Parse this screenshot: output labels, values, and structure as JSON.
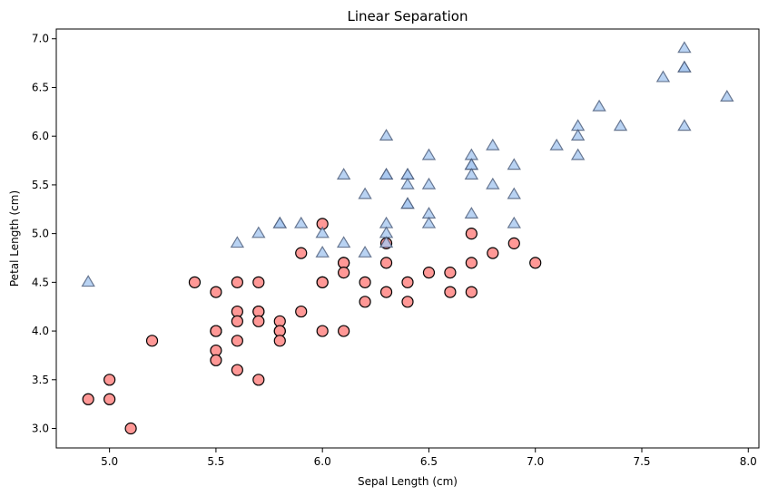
{
  "chart_data": {
    "type": "scatter",
    "title": "Linear Separation",
    "xlabel": "Sepal Length (cm)",
    "ylabel": "Petal Length (cm)",
    "xlim": [
      4.75,
      8.05
    ],
    "ylim": [
      2.8,
      7.1
    ],
    "xticks": [
      "5.0",
      "5.5",
      "6.0",
      "6.5",
      "7.0",
      "7.5",
      "8.0"
    ],
    "yticks": [
      "3.0",
      "3.5",
      "4.0",
      "4.5",
      "5.0",
      "5.5",
      "6.0",
      "6.5",
      "7.0"
    ],
    "grid": false,
    "legend": false,
    "colors": {
      "circle_fill": "#ff9896",
      "circle_edge": "#000000",
      "triangle_fill": "#a8c8f0",
      "triangle_edge": "#4a5a78"
    },
    "series": [
      {
        "marker": "circle",
        "points": [
          [
            4.9,
            3.3
          ],
          [
            5.0,
            3.5
          ],
          [
            5.0,
            3.3
          ],
          [
            5.1,
            3.0
          ],
          [
            5.2,
            3.9
          ],
          [
            5.4,
            4.5
          ],
          [
            5.5,
            4.4
          ],
          [
            5.5,
            4.0
          ],
          [
            5.5,
            4.0
          ],
          [
            5.5,
            3.8
          ],
          [
            5.5,
            3.7
          ],
          [
            5.6,
            4.5
          ],
          [
            5.6,
            4.2
          ],
          [
            5.6,
            4.1
          ],
          [
            5.6,
            3.9
          ],
          [
            5.6,
            3.6
          ],
          [
            5.7,
            4.5
          ],
          [
            5.7,
            4.2
          ],
          [
            5.7,
            4.2
          ],
          [
            5.7,
            4.1
          ],
          [
            5.7,
            3.5
          ],
          [
            5.8,
            4.1
          ],
          [
            5.8,
            4.0
          ],
          [
            5.8,
            4.0
          ],
          [
            5.8,
            3.9
          ],
          [
            5.9,
            4.8
          ],
          [
            5.9,
            4.2
          ],
          [
            6.0,
            5.1
          ],
          [
            6.0,
            4.5
          ],
          [
            6.0,
            4.5
          ],
          [
            6.0,
            4.0
          ],
          [
            6.1,
            4.7
          ],
          [
            6.1,
            4.7
          ],
          [
            6.1,
            4.6
          ],
          [
            6.1,
            4.0
          ],
          [
            6.2,
            4.5
          ],
          [
            6.2,
            4.3
          ],
          [
            6.3,
            4.9
          ],
          [
            6.3,
            4.7
          ],
          [
            6.3,
            4.4
          ],
          [
            6.4,
            4.5
          ],
          [
            6.4,
            4.3
          ],
          [
            6.5,
            4.6
          ],
          [
            6.6,
            4.6
          ],
          [
            6.6,
            4.4
          ],
          [
            6.7,
            5.0
          ],
          [
            6.7,
            4.7
          ],
          [
            6.7,
            4.4
          ],
          [
            6.8,
            4.8
          ],
          [
            6.9,
            4.9
          ],
          [
            7.0,
            4.7
          ]
        ]
      },
      {
        "marker": "triangle",
        "points": [
          [
            4.9,
            4.5
          ],
          [
            5.6,
            4.9
          ],
          [
            5.7,
            5.0
          ],
          [
            5.8,
            5.1
          ],
          [
            5.8,
            5.1
          ],
          [
            5.9,
            5.1
          ],
          [
            6.0,
            5.0
          ],
          [
            6.0,
            4.8
          ],
          [
            6.1,
            5.6
          ],
          [
            6.1,
            4.9
          ],
          [
            6.2,
            5.4
          ],
          [
            6.2,
            4.8
          ],
          [
            6.3,
            6.0
          ],
          [
            6.3,
            5.6
          ],
          [
            6.3,
            5.6
          ],
          [
            6.3,
            5.1
          ],
          [
            6.3,
            5.0
          ],
          [
            6.3,
            4.9
          ],
          [
            6.4,
            5.6
          ],
          [
            6.4,
            5.6
          ],
          [
            6.4,
            5.5
          ],
          [
            6.4,
            5.3
          ],
          [
            6.4,
            5.3
          ],
          [
            6.5,
            5.8
          ],
          [
            6.5,
            5.5
          ],
          [
            6.5,
            5.2
          ],
          [
            6.5,
            5.1
          ],
          [
            6.7,
            5.8
          ],
          [
            6.7,
            5.7
          ],
          [
            6.7,
            5.7
          ],
          [
            6.7,
            5.6
          ],
          [
            6.7,
            5.2
          ],
          [
            6.8,
            5.9
          ],
          [
            6.8,
            5.5
          ],
          [
            6.9,
            5.7
          ],
          [
            6.9,
            5.4
          ],
          [
            6.9,
            5.1
          ],
          [
            7.1,
            5.9
          ],
          [
            7.2,
            6.1
          ],
          [
            7.2,
            6.0
          ],
          [
            7.2,
            5.8
          ],
          [
            7.3,
            6.3
          ],
          [
            7.4,
            6.1
          ],
          [
            7.6,
            6.6
          ],
          [
            7.7,
            6.9
          ],
          [
            7.7,
            6.7
          ],
          [
            7.7,
            6.7
          ],
          [
            7.7,
            6.1
          ],
          [
            7.9,
            6.4
          ]
        ]
      }
    ]
  }
}
